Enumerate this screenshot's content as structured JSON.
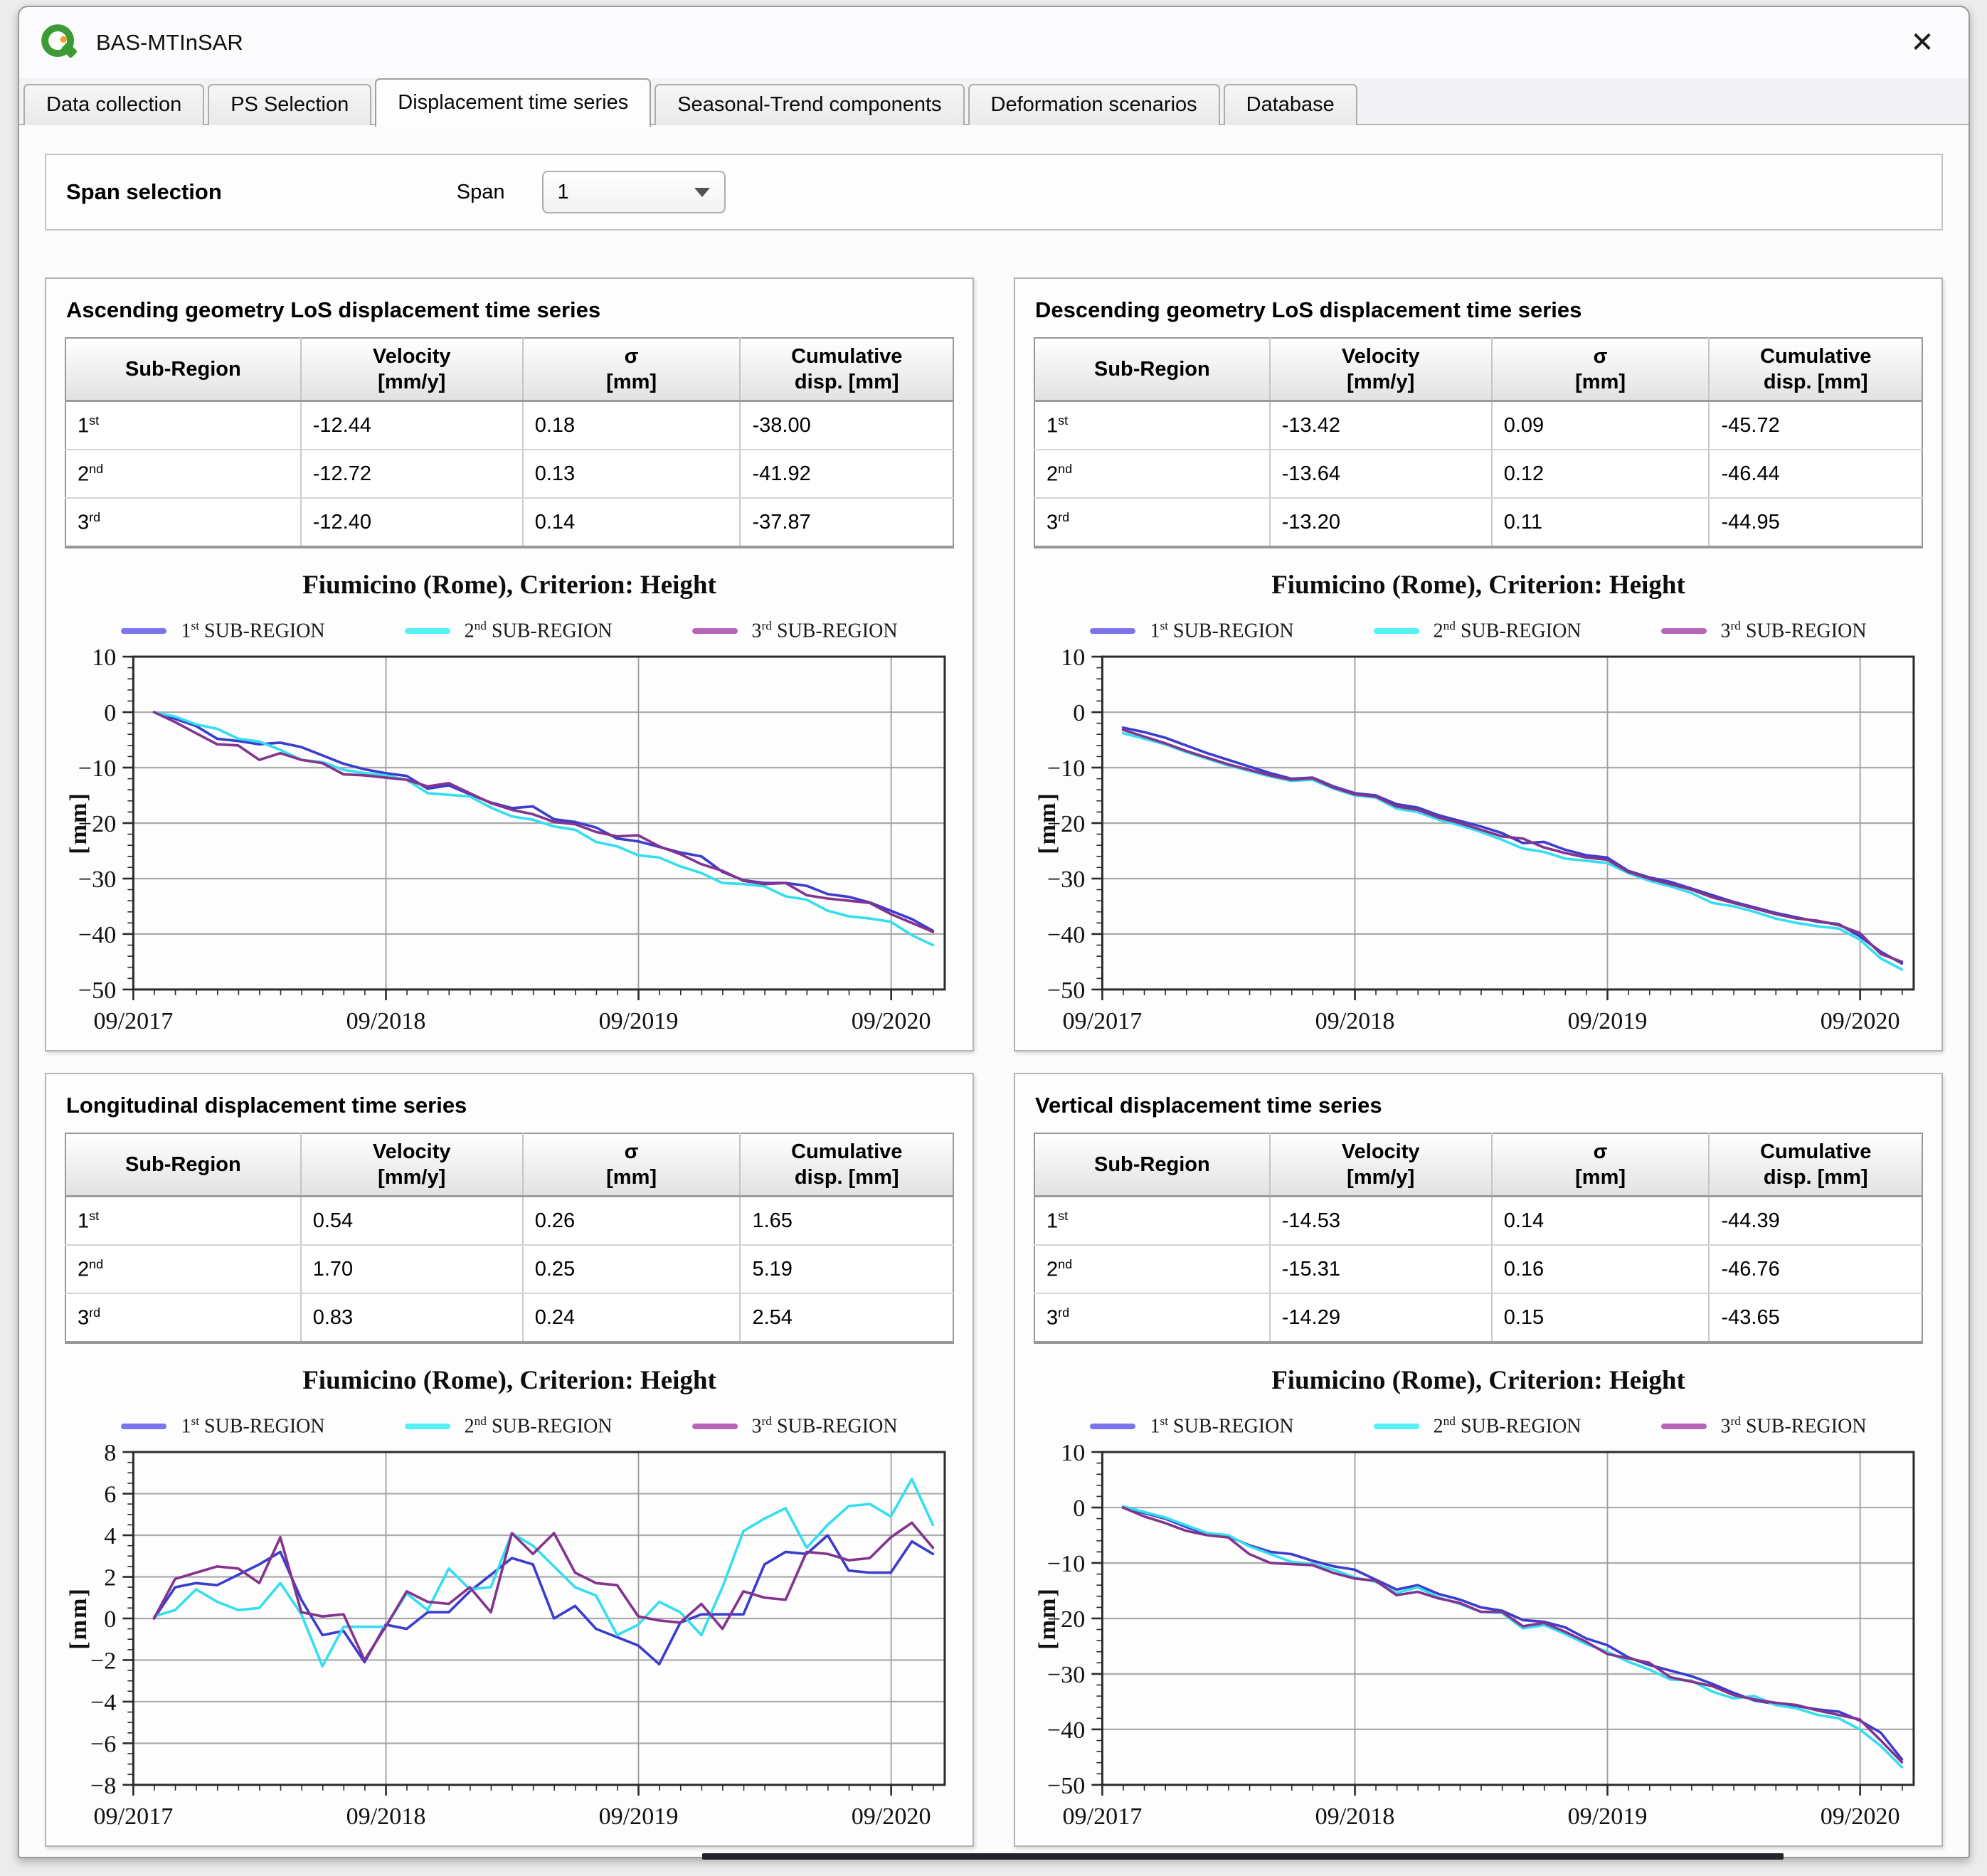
{
  "window": {
    "title": "BAS-MTInSAR",
    "close_glyph": "✕"
  },
  "tabs": [
    {
      "label": "Data collection",
      "active": false
    },
    {
      "label": "PS Selection",
      "active": false
    },
    {
      "label": "Displacement time series",
      "active": true
    },
    {
      "label": "Seasonal-Trend components",
      "active": false
    },
    {
      "label": "Deformation scenarios",
      "active": false
    },
    {
      "label": "Database",
      "active": false
    }
  ],
  "span_selection": {
    "group_title": "Span selection",
    "label": "Span",
    "value": "1"
  },
  "table_headers": [
    {
      "l1": "Sub-Region",
      "l2": ""
    },
    {
      "l1": "Velocity",
      "l2": "[mm/y]"
    },
    {
      "l1": "σ",
      "l2": "[mm]"
    },
    {
      "l1": "Cumulative",
      "l2": "disp. [mm]"
    }
  ],
  "chart_config": {
    "x_start": 2017.708,
    "x_end": 2020.92,
    "x_ticks": [
      2017.708,
      2018.708,
      2019.708,
      2020.708
    ],
    "x_tick_labels": [
      "09/2017",
      "09/2018",
      "09/2019",
      "09/2020"
    ],
    "x_data_start": 2017.79,
    "x_data_step": 0.083333,
    "line_colors": [
      "#3c3ccd",
      "#35deee",
      "#84348e"
    ],
    "legend": [
      {
        "num": "1",
        "sup": "st",
        "rest": " SUB-REGION",
        "color": "#7b74ec"
      },
      {
        "num": "2",
        "sup": "nd",
        "rest": " SUB-REGION",
        "color": "#55f0f4"
      },
      {
        "num": "3",
        "sup": "rd",
        "rest": " SUB-REGION",
        "color": "#b765b7"
      }
    ]
  },
  "chart_data": [
    {
      "type": "line",
      "panel": "ascending",
      "title": "Fiumicino (Rome), Criterion: Height",
      "xlabel": "",
      "ylabel": "[mm]",
      "ylim": [
        -50,
        10
      ],
      "grid": true,
      "legend_position": "top",
      "x_tick_labels": [
        "09/2017",
        "09/2018",
        "09/2019",
        "09/2020"
      ],
      "series_names": [
        "1st SUB-REGION",
        "2nd SUB-REGION",
        "3rd SUB-REGION"
      ]
    },
    {
      "type": "line",
      "panel": "descending",
      "title": "Fiumicino (Rome), Criterion: Height",
      "xlabel": "",
      "ylabel": "[mm]",
      "ylim": [
        -50,
        10
      ],
      "grid": true,
      "legend_position": "top",
      "x_tick_labels": [
        "09/2017",
        "09/2018",
        "09/2019",
        "09/2020"
      ],
      "series_names": [
        "1st SUB-REGION",
        "2nd SUB-REGION",
        "3rd SUB-REGION"
      ]
    },
    {
      "type": "line",
      "panel": "longitudinal",
      "title": "Fiumicino (Rome), Criterion: Height",
      "xlabel": "",
      "ylabel": "[mm]",
      "ylim": [
        -8,
        8
      ],
      "grid": true,
      "legend_position": "top",
      "x_tick_labels": [
        "09/2017",
        "09/2018",
        "09/2019",
        "09/2020"
      ],
      "series_names": [
        "1st SUB-REGION",
        "2nd SUB-REGION",
        "3rd SUB-REGION"
      ]
    },
    {
      "type": "line",
      "panel": "vertical",
      "title": "Fiumicino (Rome), Criterion: Height",
      "xlabel": "",
      "ylabel": "[mm]",
      "ylim": [
        -50,
        10
      ],
      "grid": true,
      "legend_position": "top",
      "x_tick_labels": [
        "09/2017",
        "09/2018",
        "09/2019",
        "09/2020"
      ],
      "series_names": [
        "1st SUB-REGION",
        "2nd SUB-REGION",
        "3rd SUB-REGION"
      ]
    }
  ],
  "panels": [
    {
      "key": "ascending",
      "title": "Ascending geometry LoS displacement time series",
      "rows": [
        {
          "num": "1",
          "sup": "st",
          "velocity": "-12.44",
          "sigma": "0.18",
          "cumulative": "-38.00"
        },
        {
          "num": "2",
          "sup": "nd",
          "velocity": "-12.72",
          "sigma": "0.13",
          "cumulative": "-41.92"
        },
        {
          "num": "3",
          "sup": "rd",
          "velocity": "-12.40",
          "sigma": "0.14",
          "cumulative": "-37.87"
        }
      ],
      "chart": {
        "title": "Fiumicino (Rome), Criterion: Height",
        "ylabel": "[mm]",
        "ylim": [
          -50,
          10
        ],
        "y_major_step": 10,
        "y_minor_step": 2,
        "series": [
          {
            "name": "1st SUB-REGION",
            "values": [
              0,
              -1.2,
              -2.5,
              -4.8,
              -5.2,
              -5.8,
              -5.5,
              -6.3,
              -7.8,
              -9.3,
              -10.3,
              -11,
              -11.5,
              -13.8,
              -13.2,
              -14.8,
              -16.3,
              -17.3,
              -17,
              -19.3,
              -19.8,
              -20.8,
              -22.8,
              -23.3,
              -24.3,
              -25.3,
              -26,
              -28.8,
              -30.3,
              -30.8,
              -30.8,
              -31.3,
              -32.8,
              -33.3,
              -34.3,
              -35.8,
              -37.3,
              -39.4
            ]
          },
          {
            "name": "2nd SUB-REGION",
            "values": [
              0,
              -0.8,
              -2.2,
              -3,
              -4.8,
              -5.3,
              -6.8,
              -8.6,
              -9,
              -10.4,
              -11,
              -11.4,
              -12.2,
              -14.6,
              -14.9,
              -15.2,
              -17.2,
              -18.8,
              -19.4,
              -20.6,
              -21.2,
              -23.4,
              -24.2,
              -25.8,
              -26.2,
              -27.8,
              -29,
              -30.8,
              -31,
              -31.4,
              -33.2,
              -33.8,
              -35.8,
              -36.8,
              -37.2,
              -37.8,
              -40.2,
              -42
            ]
          },
          {
            "name": "3rd SUB-REGION",
            "values": [
              0,
              -1.8,
              -3.8,
              -5.8,
              -6,
              -8.6,
              -7.4,
              -8.6,
              -9.2,
              -11.2,
              -11.4,
              -11.8,
              -12.2,
              -13.4,
              -12.8,
              -14.6,
              -16.4,
              -17.6,
              -18.4,
              -19.8,
              -20.2,
              -21.6,
              -22.4,
              -22.2,
              -24.2,
              -25.6,
              -27.4,
              -28.6,
              -30.4,
              -31,
              -30.8,
              -33,
              -33.6,
              -34,
              -34.4,
              -36.4,
              -38,
              -39.6
            ]
          }
        ]
      }
    },
    {
      "key": "descending",
      "title": "Descending geometry LoS displacement time series",
      "rows": [
        {
          "num": "1",
          "sup": "st",
          "velocity": "-13.42",
          "sigma": "0.09",
          "cumulative": "-45.72"
        },
        {
          "num": "2",
          "sup": "nd",
          "velocity": "-13.64",
          "sigma": "0.12",
          "cumulative": "-46.44"
        },
        {
          "num": "3",
          "sup": "rd",
          "velocity": "-13.20",
          "sigma": "0.11",
          "cumulative": "-44.95"
        }
      ],
      "chart": {
        "title": "Fiumicino (Rome), Criterion: Height",
        "ylabel": "[mm]",
        "ylim": [
          -50,
          10
        ],
        "y_major_step": 10,
        "y_minor_step": 2,
        "series": [
          {
            "name": "1st SUB-REGION",
            "values": [
              -2.8,
              -3.6,
              -4.6,
              -6,
              -7.4,
              -8.6,
              -9.8,
              -11,
              -12,
              -11.8,
              -13.4,
              -14.6,
              -15,
              -16.6,
              -17.2,
              -18.6,
              -19.6,
              -20.6,
              -21.8,
              -23.6,
              -23.4,
              -24.8,
              -25.8,
              -26.2,
              -28.6,
              -29.8,
              -30.6,
              -31.8,
              -33,
              -34.2,
              -35.2,
              -36.2,
              -37,
              -37.8,
              -38.2,
              -40.4,
              -43.2,
              -45.3
            ]
          },
          {
            "name": "2nd SUB-REGION",
            "values": [
              -3.8,
              -4.8,
              -5.8,
              -7.2,
              -8.4,
              -9.6,
              -10.6,
              -11.6,
              -12.4,
              -12.2,
              -13.8,
              -15,
              -15.4,
              -17.4,
              -18,
              -19.4,
              -20.4,
              -21.6,
              -23,
              -24.6,
              -25.2,
              -26.4,
              -26.8,
              -27.2,
              -29,
              -30.4,
              -31.4,
              -32.6,
              -34.4,
              -35,
              -36,
              -37.2,
              -38,
              -38.6,
              -39,
              -41,
              -44.4,
              -46.4
            ]
          },
          {
            "name": "3rd SUB-REGION",
            "values": [
              -3.2,
              -4.4,
              -5.6,
              -7,
              -8.2,
              -9.4,
              -10.4,
              -11.4,
              -12.2,
              -11.9,
              -13.6,
              -14.8,
              -15.2,
              -17,
              -17.6,
              -19,
              -20,
              -21.2,
              -22.4,
              -22.8,
              -24.4,
              -25.4,
              -26.2,
              -26.6,
              -28.8,
              -30,
              -31,
              -32,
              -33.4,
              -34.4,
              -35.4,
              -36.4,
              -37.2,
              -37.6,
              -38.4,
              -39.8,
              -43.6,
              -45
            ]
          }
        ]
      }
    },
    {
      "key": "longitudinal",
      "title": "Longitudinal displacement time series",
      "rows": [
        {
          "num": "1",
          "sup": "st",
          "velocity": "0.54",
          "sigma": "0.26",
          "cumulative": "1.65"
        },
        {
          "num": "2",
          "sup": "nd",
          "velocity": "1.70",
          "sigma": "0.25",
          "cumulative": "5.19"
        },
        {
          "num": "3",
          "sup": "rd",
          "velocity": "0.83",
          "sigma": "0.24",
          "cumulative": "2.54"
        }
      ],
      "chart": {
        "title": "Fiumicino (Rome), Criterion: Height",
        "ylabel": "[mm]",
        "ylim": [
          -8,
          8
        ],
        "y_major_step": 2,
        "y_minor_step": 0.5,
        "series": [
          {
            "name": "1st SUB-REGION",
            "values": [
              0,
              1.5,
              1.7,
              1.6,
              2.1,
              2.6,
              3.2,
              0.9,
              -0.8,
              -0.6,
              -2.1,
              -0.3,
              -0.5,
              0.3,
              0.3,
              1.3,
              2.1,
              2.9,
              2.6,
              0,
              0.6,
              -0.5,
              -0.9,
              -1.3,
              -2.2,
              -0.2,
              0.2,
              0.2,
              0.2,
              2.6,
              3.2,
              3.1,
              4,
              2.3,
              2.2,
              2.2,
              3.7,
              3.1
            ]
          },
          {
            "name": "2nd SUB-REGION",
            "values": [
              0.1,
              0.4,
              1.4,
              0.8,
              0.4,
              0.5,
              1.7,
              0.2,
              -2.3,
              -0.4,
              -0.4,
              -0.4,
              1.2,
              0.4,
              2.4,
              1.4,
              1.5,
              4.1,
              3.5,
              2.5,
              1.5,
              1.1,
              -0.8,
              -0.3,
              0.8,
              0.3,
              -0.8,
              1.5,
              4.2,
              4.8,
              5.3,
              3.4,
              4.5,
              5.4,
              5.5,
              4.9,
              6.7,
              4.5
            ]
          },
          {
            "name": "3rd SUB-REGION",
            "values": [
              0,
              1.9,
              2.2,
              2.5,
              2.4,
              1.7,
              3.9,
              0.3,
              0.1,
              0.2,
              -2,
              -0.4,
              1.3,
              0.8,
              0.7,
              1.5,
              0.3,
              4.1,
              3.1,
              4.1,
              2.2,
              1.7,
              1.6,
              0.1,
              -0.1,
              -0.2,
              0.7,
              -0.5,
              1.3,
              1,
              0.9,
              3.2,
              3.1,
              2.8,
              2.9,
              3.9,
              4.6,
              3.4
            ]
          }
        ]
      }
    },
    {
      "key": "vertical",
      "title": "Vertical displacement time series",
      "rows": [
        {
          "num": "1",
          "sup": "st",
          "velocity": "-14.53",
          "sigma": "0.14",
          "cumulative": "-44.39"
        },
        {
          "num": "2",
          "sup": "nd",
          "velocity": "-15.31",
          "sigma": "0.16",
          "cumulative": "-46.76"
        },
        {
          "num": "3",
          "sup": "rd",
          "velocity": "-14.29",
          "sigma": "0.15",
          "cumulative": "-43.65"
        }
      ],
      "chart": {
        "title": "Fiumicino (Rome), Criterion: Height",
        "ylabel": "[mm]",
        "ylim": [
          -50,
          10
        ],
        "y_major_step": 10,
        "y_minor_step": 2,
        "series": [
          {
            "name": "1st SUB-REGION",
            "values": [
              0,
              -1,
              -2,
              -3.5,
              -4.8,
              -5.2,
              -6.8,
              -8,
              -8.4,
              -9.6,
              -10.6,
              -11.2,
              -13,
              -14.8,
              -14,
              -15.6,
              -16.6,
              -18,
              -18.6,
              -20.3,
              -20.6,
              -21.6,
              -23.6,
              -24.8,
              -27,
              -28.4,
              -29.4,
              -30.4,
              -31.8,
              -33.4,
              -34.8,
              -35.4,
              -35.8,
              -36.4,
              -36.8,
              -38.4,
              -40.6,
              -45.4
            ]
          },
          {
            "name": "2nd SUB-REGION",
            "values": [
              0.2,
              -0.8,
              -1.8,
              -3.2,
              -4.6,
              -5,
              -7,
              -8.4,
              -9.8,
              -10.2,
              -11.2,
              -12.6,
              -13.4,
              -15.4,
              -14.4,
              -16.2,
              -17.4,
              -18.8,
              -19,
              -21.8,
              -21.2,
              -22.8,
              -24.6,
              -26,
              -27.8,
              -29.2,
              -31,
              -31.2,
              -33.2,
              -34.4,
              -34,
              -35.6,
              -36.2,
              -37.4,
              -38,
              -40,
              -43,
              -46.8
            ]
          },
          {
            "name": "3rd SUB-REGION",
            "values": [
              0,
              -1.6,
              -2.8,
              -4.2,
              -5,
              -5.4,
              -8.4,
              -10,
              -10.2,
              -10.4,
              -11.8,
              -12.8,
              -13.2,
              -15.8,
              -15.2,
              -16.4,
              -17.2,
              -18.8,
              -18.8,
              -21.4,
              -20.8,
              -22.4,
              -24.2,
              -26.4,
              -27.2,
              -28,
              -30.6,
              -31.4,
              -32.2,
              -33.8,
              -34.6,
              -35.2,
              -35.6,
              -36.6,
              -37.4,
              -38.2,
              -42,
              -45.9
            ]
          }
        ]
      }
    }
  ]
}
